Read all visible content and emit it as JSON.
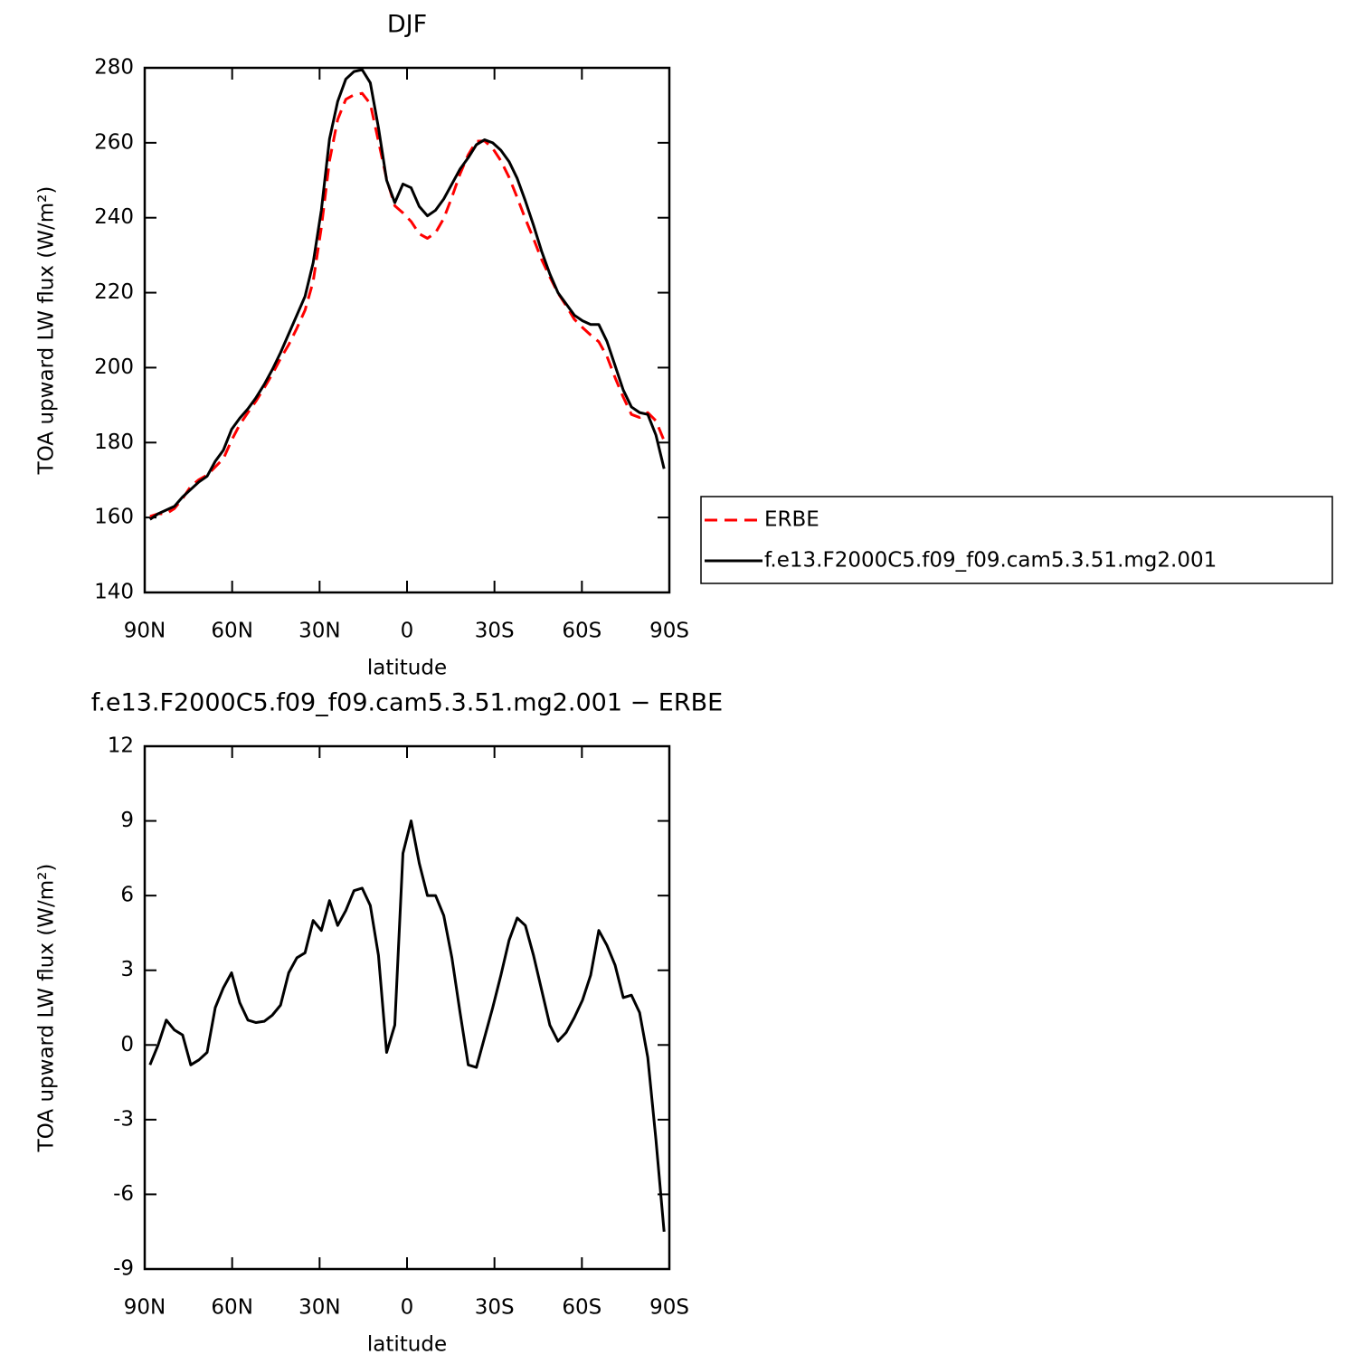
{
  "chart_data": [
    {
      "type": "line",
      "title": "DJF",
      "xlabel": "latitude",
      "ylabel": "TOA upward LW flux (W/m²)",
      "x": [
        88.2,
        85.4,
        82.6,
        79.8,
        77.0,
        74.2,
        71.4,
        68.6,
        65.8,
        63.0,
        60.2,
        57.4,
        54.6,
        51.8,
        49.0,
        46.2,
        43.4,
        40.6,
        37.8,
        35.0,
        32.2,
        29.4,
        26.6,
        23.8,
        21.0,
        18.2,
        15.4,
        12.6,
        9.8,
        7.0,
        4.2,
        1.4,
        -1.4,
        -4.2,
        -7.0,
        -9.8,
        -12.6,
        -15.4,
        -18.2,
        -21.0,
        -23.8,
        -26.6,
        -29.4,
        -32.2,
        -35.0,
        -37.8,
        -40.6,
        -43.4,
        -46.2,
        -49.0,
        -51.8,
        -54.6,
        -57.4,
        -60.2,
        -63.0,
        -65.8,
        -68.6,
        -71.4,
        -74.2,
        -77.0,
        -79.8,
        -82.6,
        -85.4,
        -88.2
      ],
      "series": [
        {
          "name": "ERBE",
          "color": "#ff0000",
          "dash": "dashed",
          "values": [
            160.3,
            161,
            161,
            162.4,
            165.1,
            168.3,
            170.1,
            171.3,
            173.5,
            175.7,
            180.6,
            184.8,
            188,
            191.1,
            194.6,
            198.3,
            202.4,
            206.1,
            210.5,
            215.3,
            223,
            237.4,
            255.2,
            266.2,
            271.6,
            272.8,
            273.2,
            270.4,
            260.4,
            250.3,
            243.2,
            241.3,
            239,
            235.7,
            234.5,
            236,
            239.8,
            245.5,
            251.7,
            256.8,
            260.4,
            260.5,
            258.5,
            255.2,
            250.8,
            245.4,
            239.7,
            234.4,
            228.8,
            224.2,
            219.9,
            216.5,
            212.9,
            210.7,
            208.7,
            206.9,
            203,
            197.3,
            192.1,
            187.5,
            186.7,
            188,
            185.8,
            180.5
          ]
        },
        {
          "name": "f.e13.F2000C5.f09_f09.cam5.3.51.mg2.001",
          "color": "#000000",
          "dash": "solid",
          "values": [
            159.5,
            161,
            162,
            163,
            165.5,
            167.5,
            169.5,
            171,
            175,
            178,
            183.5,
            186.5,
            189,
            192,
            195.5,
            199.5,
            204,
            209,
            214,
            219,
            228,
            242,
            261,
            271,
            277,
            279,
            279.5,
            276,
            264,
            250,
            244,
            249,
            248,
            243,
            240.5,
            242,
            245,
            249,
            253,
            256,
            259.5,
            260.8,
            260,
            258,
            255,
            250.5,
            244.5,
            238,
            231,
            225,
            220,
            217,
            214,
            212.5,
            211.5,
            211.5,
            207,
            200.5,
            194,
            189.5,
            188,
            187.5,
            182,
            173
          ]
        }
      ],
      "xlim": [
        90,
        -90
      ],
      "xticks": [
        {
          "value": 90,
          "label": "90N"
        },
        {
          "value": 60,
          "label": "60N"
        },
        {
          "value": 30,
          "label": "30N"
        },
        0,
        {
          "value": -30,
          "label": "30S"
        },
        {
          "value": -60,
          "label": "60S"
        },
        {
          "value": -90,
          "label": "90S"
        }
      ],
      "ylim": [
        140,
        280
      ],
      "yticks": [
        140,
        160,
        180,
        200,
        220,
        240,
        260,
        280
      ],
      "legend": "right"
    },
    {
      "type": "line",
      "title": "f.e13.F2000C5.f09_f09.cam5.3.51.mg2.001 − ERBE",
      "xlabel": "latitude",
      "ylabel": "TOA upward LW flux (W/m²)",
      "x": [
        88.2,
        85.4,
        82.6,
        79.8,
        77.0,
        74.2,
        71.4,
        68.6,
        65.8,
        63.0,
        60.2,
        57.4,
        54.6,
        51.8,
        49.0,
        46.2,
        43.4,
        40.6,
        37.8,
        35.0,
        32.2,
        29.4,
        26.6,
        23.8,
        21.0,
        18.2,
        15.4,
        12.6,
        9.8,
        7.0,
        4.2,
        1.4,
        -1.4,
        -4.2,
        -7.0,
        -9.8,
        -12.6,
        -15.4,
        -18.2,
        -21.0,
        -23.8,
        -26.6,
        -29.4,
        -32.2,
        -35.0,
        -37.8,
        -40.6,
        -43.4,
        -46.2,
        -49.0,
        -51.8,
        -54.6,
        -57.4,
        -60.2,
        -63.0,
        -65.8,
        -68.6,
        -71.4,
        -74.2,
        -77.0,
        -79.8,
        -82.6,
        -85.4,
        -88.2
      ],
      "values": [
        -0.8,
        0,
        1.0,
        0.6,
        0.4,
        -0.8,
        -0.6,
        -0.3,
        1.5,
        2.3,
        2.9,
        1.7,
        1.0,
        0.9,
        0.95,
        1.2,
        1.6,
        2.9,
        3.5,
        3.7,
        5.0,
        4.6,
        5.8,
        4.8,
        5.4,
        6.2,
        6.3,
        5.6,
        3.6,
        -0.3,
        0.8,
        7.7,
        9.0,
        7.3,
        6.0,
        6.0,
        5.2,
        3.5,
        1.3,
        -0.8,
        -0.9,
        0.3,
        1.5,
        2.8,
        4.2,
        5.1,
        4.8,
        3.6,
        2.2,
        0.8,
        0.15,
        0.5,
        1.1,
        1.8,
        2.8,
        4.6,
        4.0,
        3.2,
        1.9,
        2.0,
        1.3,
        -0.5,
        -3.8,
        -7.5
      ],
      "color": "#000000",
      "xlim": [
        90,
        -90
      ],
      "xticks": [
        {
          "value": 90,
          "label": "90N"
        },
        {
          "value": 60,
          "label": "60N"
        },
        {
          "value": 30,
          "label": "30N"
        },
        0,
        {
          "value": -30,
          "label": "30S"
        },
        {
          "value": -60,
          "label": "60S"
        },
        {
          "value": -90,
          "label": "90S"
        }
      ],
      "ylim": [
        -9,
        12
      ],
      "yticks": [
        -9,
        -6,
        -3,
        0,
        3,
        6,
        9,
        12
      ]
    }
  ]
}
